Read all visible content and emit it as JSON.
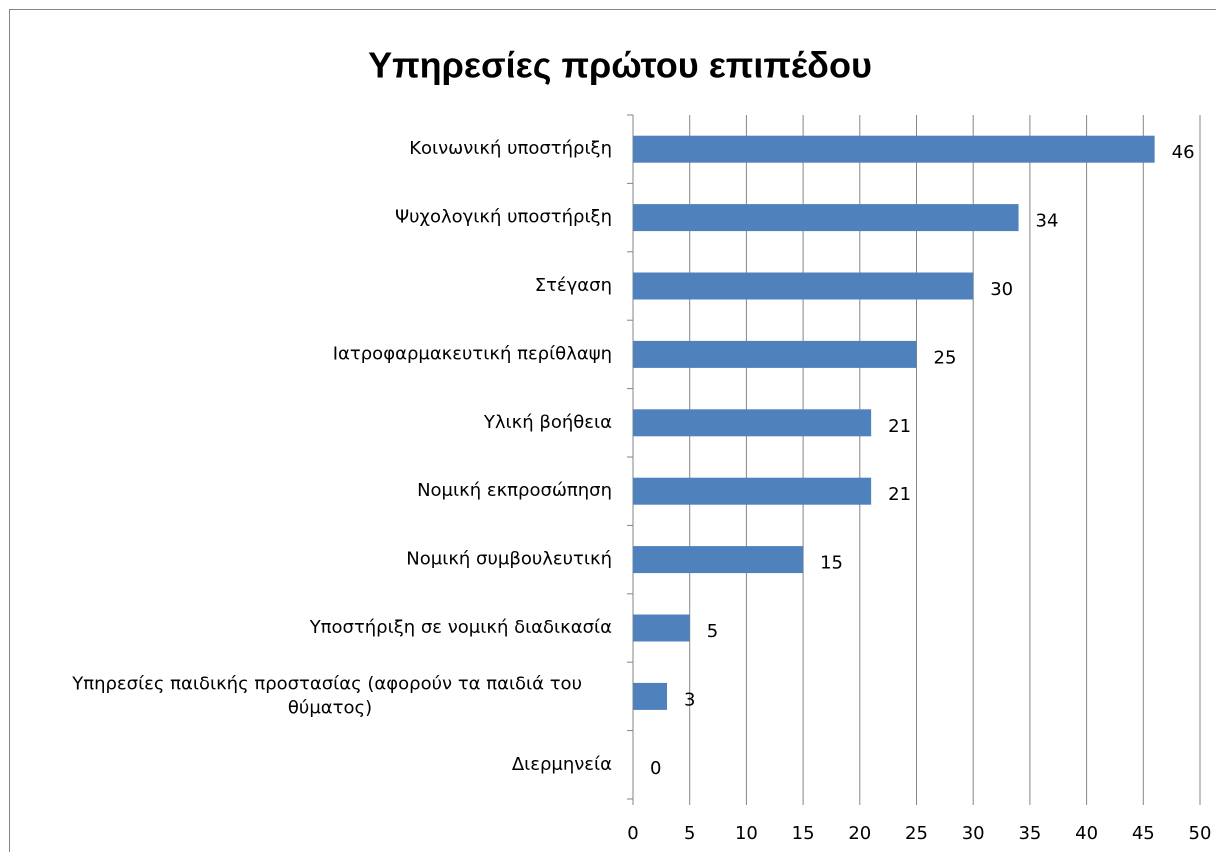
{
  "chart_data": {
    "type": "barh",
    "title": "Υπηρεσίες πρώτου επιπέδου",
    "categories": [
      "Κοινωνική υποστήριξη",
      "Ψυχολογική υποστήριξη",
      "Στέγαση",
      "Ιατροφαρμακευτική περίθλαψη",
      "Υλική βοήθεια",
      "Νομική εκπροσώπηση",
      "Νομική συμβουλευτική",
      "Υποστήριξη σε νομική διαδικασία",
      "Υπηρεσίες παιδικής προστασίας (αφορούν τα παιδιά του θύματος)",
      "Διερμηνεία"
    ],
    "values": [
      46,
      34,
      30,
      25,
      21,
      21,
      15,
      5,
      3,
      0
    ],
    "color": "#4f81bd",
    "xlim": [
      0,
      50
    ],
    "xticks": [
      0,
      5,
      10,
      15,
      20,
      25,
      30,
      35,
      40,
      45,
      50
    ],
    "grid": true
  }
}
